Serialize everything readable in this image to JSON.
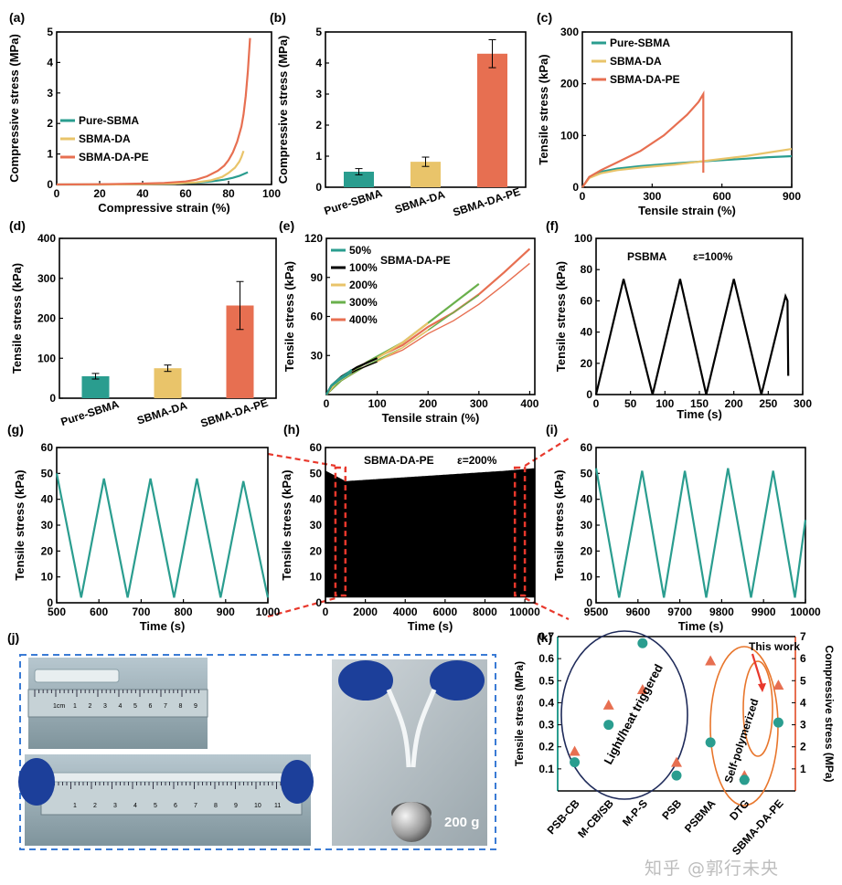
{
  "figure": {
    "panel_letters": [
      "(a)",
      "(b)",
      "(c)",
      "(d)",
      "(e)",
      "(f)",
      "(g)",
      "(h)",
      "(i)",
      "(j)",
      "(k)"
    ],
    "watermark": "知乎 @郭行未央"
  },
  "colors": {
    "pure_sbma": "#2a9d8f",
    "sbma_da": "#e9c46a",
    "sbma_da_pe": "#e76f51",
    "green": "#2a9d8f",
    "orange": "#e76f51",
    "dark": "#000000",
    "dashed_box": "#3a7bd5",
    "ellipse_dark": "#1f2b5a",
    "ellipse_orange": "#e8762c",
    "axis_right_orange": "#e76f51",
    "axis_left_green": "#2a9d8f",
    "red_dash": "#e8382c"
  },
  "chart_data": [
    {
      "panel": "(a)",
      "type": "line",
      "xlabel": "Compressive strain (%)",
      "ylabel": "Compressive stress (MPa)",
      "xlim": [
        0,
        100
      ],
      "ylim": [
        0,
        5
      ],
      "xticks": [
        0,
        20,
        40,
        60,
        80,
        100
      ],
      "yticks": [
        0,
        1,
        2,
        3,
        4,
        5
      ],
      "legend_position": "center-left",
      "series": [
        {
          "name": "Pure-SBMA",
          "color": "#2a9d8f",
          "x": [
            0,
            20,
            40,
            55,
            65,
            72,
            78,
            82,
            85,
            87,
            89
          ],
          "y": [
            0,
            0,
            0.01,
            0.03,
            0.06,
            0.1,
            0.16,
            0.22,
            0.28,
            0.34,
            0.4
          ]
        },
        {
          "name": "SBMA-DA",
          "color": "#e9c46a",
          "x": [
            0,
            20,
            40,
            55,
            65,
            72,
            77,
            80,
            83,
            85,
            86,
            87
          ],
          "y": [
            0,
            0,
            0.01,
            0.03,
            0.07,
            0.14,
            0.25,
            0.38,
            0.55,
            0.75,
            0.9,
            1.1
          ]
        },
        {
          "name": "SBMA-DA-PE",
          "color": "#e76f51",
          "x": [
            0,
            20,
            40,
            50,
            60,
            65,
            70,
            75,
            78,
            80,
            82,
            84,
            86,
            87,
            88,
            89,
            90
          ],
          "y": [
            0,
            0.01,
            0.03,
            0.05,
            0.1,
            0.16,
            0.27,
            0.45,
            0.62,
            0.8,
            1.05,
            1.4,
            1.9,
            2.3,
            2.9,
            3.7,
            4.8
          ]
        }
      ]
    },
    {
      "panel": "(b)",
      "type": "bar",
      "xlabel": "",
      "ylabel": "Compressive stress (MPa)",
      "ylim": [
        0,
        5
      ],
      "yticks": [
        0,
        1,
        2,
        3,
        4,
        5
      ],
      "categories": [
        "Pure-SBMA",
        "SBMA-DA",
        "SBMA-DA-PE"
      ],
      "values": [
        0.5,
        0.82,
        4.3
      ],
      "errors": [
        0.1,
        0.15,
        0.45
      ],
      "bar_colors": [
        "#2a9d8f",
        "#e9c46a",
        "#e76f51"
      ]
    },
    {
      "panel": "(c)",
      "type": "line",
      "xlabel": "Tensile strain (%)",
      "ylabel": "Tensile stress (kPa)",
      "xlim": [
        0,
        900
      ],
      "ylim": [
        0,
        300
      ],
      "xticks": [
        0,
        300,
        600,
        900
      ],
      "yticks": [
        0,
        100,
        200,
        300
      ],
      "legend_position": "top-left",
      "series": [
        {
          "name": "Pure-SBMA",
          "color": "#2a9d8f",
          "x": [
            0,
            30,
            80,
            150,
            250,
            400,
            550,
            700,
            800,
            900
          ],
          "y": [
            0,
            20,
            30,
            36,
            41,
            46,
            51,
            55,
            58,
            60
          ]
        },
        {
          "name": "SBMA-DA",
          "color": "#e9c46a",
          "x": [
            0,
            30,
            80,
            150,
            250,
            400,
            550,
            700,
            800,
            900
          ],
          "y": [
            0,
            18,
            27,
            33,
            38,
            44,
            52,
            60,
            67,
            74
          ]
        },
        {
          "name": "SBMA-DA-PE",
          "color": "#e76f51",
          "x": [
            0,
            30,
            80,
            150,
            250,
            350,
            450,
            500,
            520,
            520
          ],
          "y": [
            0,
            20,
            33,
            48,
            70,
            100,
            140,
            165,
            180,
            28
          ]
        }
      ]
    },
    {
      "panel": "(d)",
      "type": "bar",
      "xlabel": "",
      "ylabel": "Tensile stress (kPa)",
      "ylim": [
        0,
        400
      ],
      "yticks": [
        0,
        100,
        200,
        300,
        400
      ],
      "categories": [
        "Pure-SBMA",
        "SBMA-DA",
        "SBMA-DA-PE"
      ],
      "values": [
        55,
        75,
        232
      ],
      "errors": [
        7,
        8,
        60
      ],
      "bar_colors": [
        "#2a9d8f",
        "#e9c46a",
        "#e76f51"
      ]
    },
    {
      "panel": "(e)",
      "type": "line",
      "title": "SBMA-DA-PE",
      "xlabel": "Tensile strain (%)",
      "ylabel": "Tensile stress (kPa)",
      "xlim": [
        0,
        410
      ],
      "ylim": [
        0,
        120
      ],
      "xticks": [
        0,
        100,
        200,
        300,
        400
      ],
      "yticks": [
        30,
        60,
        90,
        120
      ],
      "legend_position": "top-left",
      "series": [
        {
          "name": "50%",
          "color": "#2a9d8f",
          "x": [
            0,
            10,
            25,
            40,
            50
          ],
          "y": [
            0,
            7,
            12,
            16,
            19
          ]
        },
        {
          "name": "100%",
          "color": "#000000",
          "x": [
            0,
            10,
            30,
            60,
            100
          ],
          "y": [
            0,
            7,
            14,
            21,
            28
          ]
        },
        {
          "name": "200%",
          "color": "#e9c46a",
          "x": [
            0,
            20,
            60,
            100,
            150,
            200
          ],
          "y": [
            0,
            10,
            21,
            28,
            40,
            55
          ]
        },
        {
          "name": "300%",
          "color": "#6ab04c",
          "x": [
            0,
            30,
            80,
            150,
            200,
            250,
            300
          ],
          "y": [
            0,
            12,
            25,
            40,
            55,
            70,
            85
          ]
        },
        {
          "name": "400%",
          "color": "#e76f51",
          "x": [
            0,
            30,
            80,
            150,
            200,
            250,
            300,
            350,
            400
          ],
          "y": [
            0,
            12,
            25,
            38,
            52,
            63,
            77,
            94,
            112
          ]
        }
      ]
    },
    {
      "panel": "(f)",
      "type": "line",
      "title": "PSBMA",
      "annotation": "ε=100%",
      "xlabel": "Time (s)",
      "ylabel": "Tensile stress (kPa)",
      "xlim": [
        0,
        300
      ],
      "ylim": [
        0,
        100
      ],
      "xticks": [
        0,
        50,
        100,
        150,
        200,
        250,
        300
      ],
      "yticks": [
        0,
        20,
        40,
        60,
        80,
        100
      ],
      "series": [
        {
          "name": "",
          "color": "#000000",
          "x": [
            0,
            40,
            82,
            122,
            160,
            200,
            240,
            275,
            278,
            279
          ],
          "y": [
            0,
            74,
            0,
            74,
            0,
            74,
            0,
            63,
            60,
            12
          ]
        }
      ]
    },
    {
      "panel": "(g)",
      "type": "line",
      "xlabel": "Time (s)",
      "ylabel": "Tensile stress (kPa)",
      "xlim": [
        500,
        1000
      ],
      "ylim": [
        0,
        60
      ],
      "xticks": [
        500,
        600,
        700,
        800,
        900,
        1000
      ],
      "yticks": [
        0,
        10,
        20,
        30,
        40,
        50,
        60
      ],
      "series": [
        {
          "name": "",
          "color": "#2a9d8f",
          "x": [
            500,
            558,
            612,
            668,
            722,
            778,
            832,
            888,
            942,
            1000
          ],
          "y": [
            50,
            2,
            48,
            2,
            48,
            2,
            48,
            2,
            47,
            2
          ]
        }
      ]
    },
    {
      "panel": "(h)",
      "type": "line",
      "title": "SBMA-DA-PE",
      "annotation": "ε=200%",
      "xlabel": "Time (s)",
      "ylabel": "Tensile stress (kPa)",
      "xlim": [
        0,
        10500
      ],
      "ylim": [
        0,
        60
      ],
      "xticks": [
        0,
        2000,
        4000,
        6000,
        8000,
        10000
      ],
      "yticks": [
        0,
        10,
        20,
        30,
        40,
        50,
        60
      ],
      "peak_envelope": {
        "x": [
          0,
          1000,
          3000,
          5000,
          7000,
          9000,
          10500
        ],
        "y": [
          51,
          47,
          48,
          49,
          50,
          51,
          52
        ]
      },
      "min_value": 2
    },
    {
      "panel": "(i)",
      "type": "line",
      "xlabel": "Time (s)",
      "ylabel": "Tensile stress (kPa)",
      "xlim": [
        9500,
        10000
      ],
      "ylim": [
        0,
        60
      ],
      "xticks": [
        9500,
        9600,
        9700,
        9800,
        9900,
        10000
      ],
      "yticks": [
        0,
        10,
        20,
        30,
        40,
        50,
        60
      ],
      "series": [
        {
          "name": "",
          "color": "#2a9d8f",
          "x": [
            9500,
            9555,
            9610,
            9662,
            9712,
            9763,
            9815,
            9870,
            9923,
            9975,
            10000
          ],
          "y": [
            52,
            2,
            51,
            2,
            51,
            2,
            52,
            2,
            51,
            2,
            32
          ]
        }
      ]
    },
    {
      "panel": "(k)",
      "type": "scatter",
      "ylabel": "Tensile stress (MPa)",
      "y2label": "Compressive stress (MPa)",
      "ylim": [
        0,
        0.7
      ],
      "y2lim": [
        0,
        7
      ],
      "yticks": [
        0.1,
        0.2,
        0.3,
        0.4,
        0.5,
        0.6,
        0.7
      ],
      "y2ticks": [
        1,
        2,
        3,
        4,
        5,
        6,
        7
      ],
      "categories": [
        "PSB-CB",
        "M-CB/SB",
        "M-P-S",
        "PSB",
        "PSBMA",
        "DTG",
        "SBMA-DA-PE"
      ],
      "series": [
        {
          "name": "Tensile stress",
          "marker": "circle",
          "color": "#2a9d8f",
          "values": [
            0.13,
            0.3,
            0.67,
            0.07,
            0.22,
            0.05,
            0.31
          ]
        },
        {
          "name": "Compressive stress",
          "marker": "triangle",
          "color": "#e76f51",
          "axis": "right",
          "values": [
            1.8,
            3.9,
            4.6,
            1.3,
            5.9,
            0.7,
            4.8
          ]
        }
      ],
      "annotations": [
        "Light/heat triggered",
        "Self-polymerized",
        "This work"
      ]
    }
  ],
  "photos": {
    "panel": "(j)",
    "ruler_top_label": "1cm",
    "ruler_digits": [
      "1",
      "2",
      "3",
      "4",
      "5",
      "6",
      "7",
      "8",
      "9"
    ],
    "ruler_bottom_digits": [
      "1",
      "2",
      "3",
      "4",
      "5",
      "6",
      "7",
      "8",
      "9",
      "10",
      "11"
    ],
    "weight_label": "200 g"
  }
}
